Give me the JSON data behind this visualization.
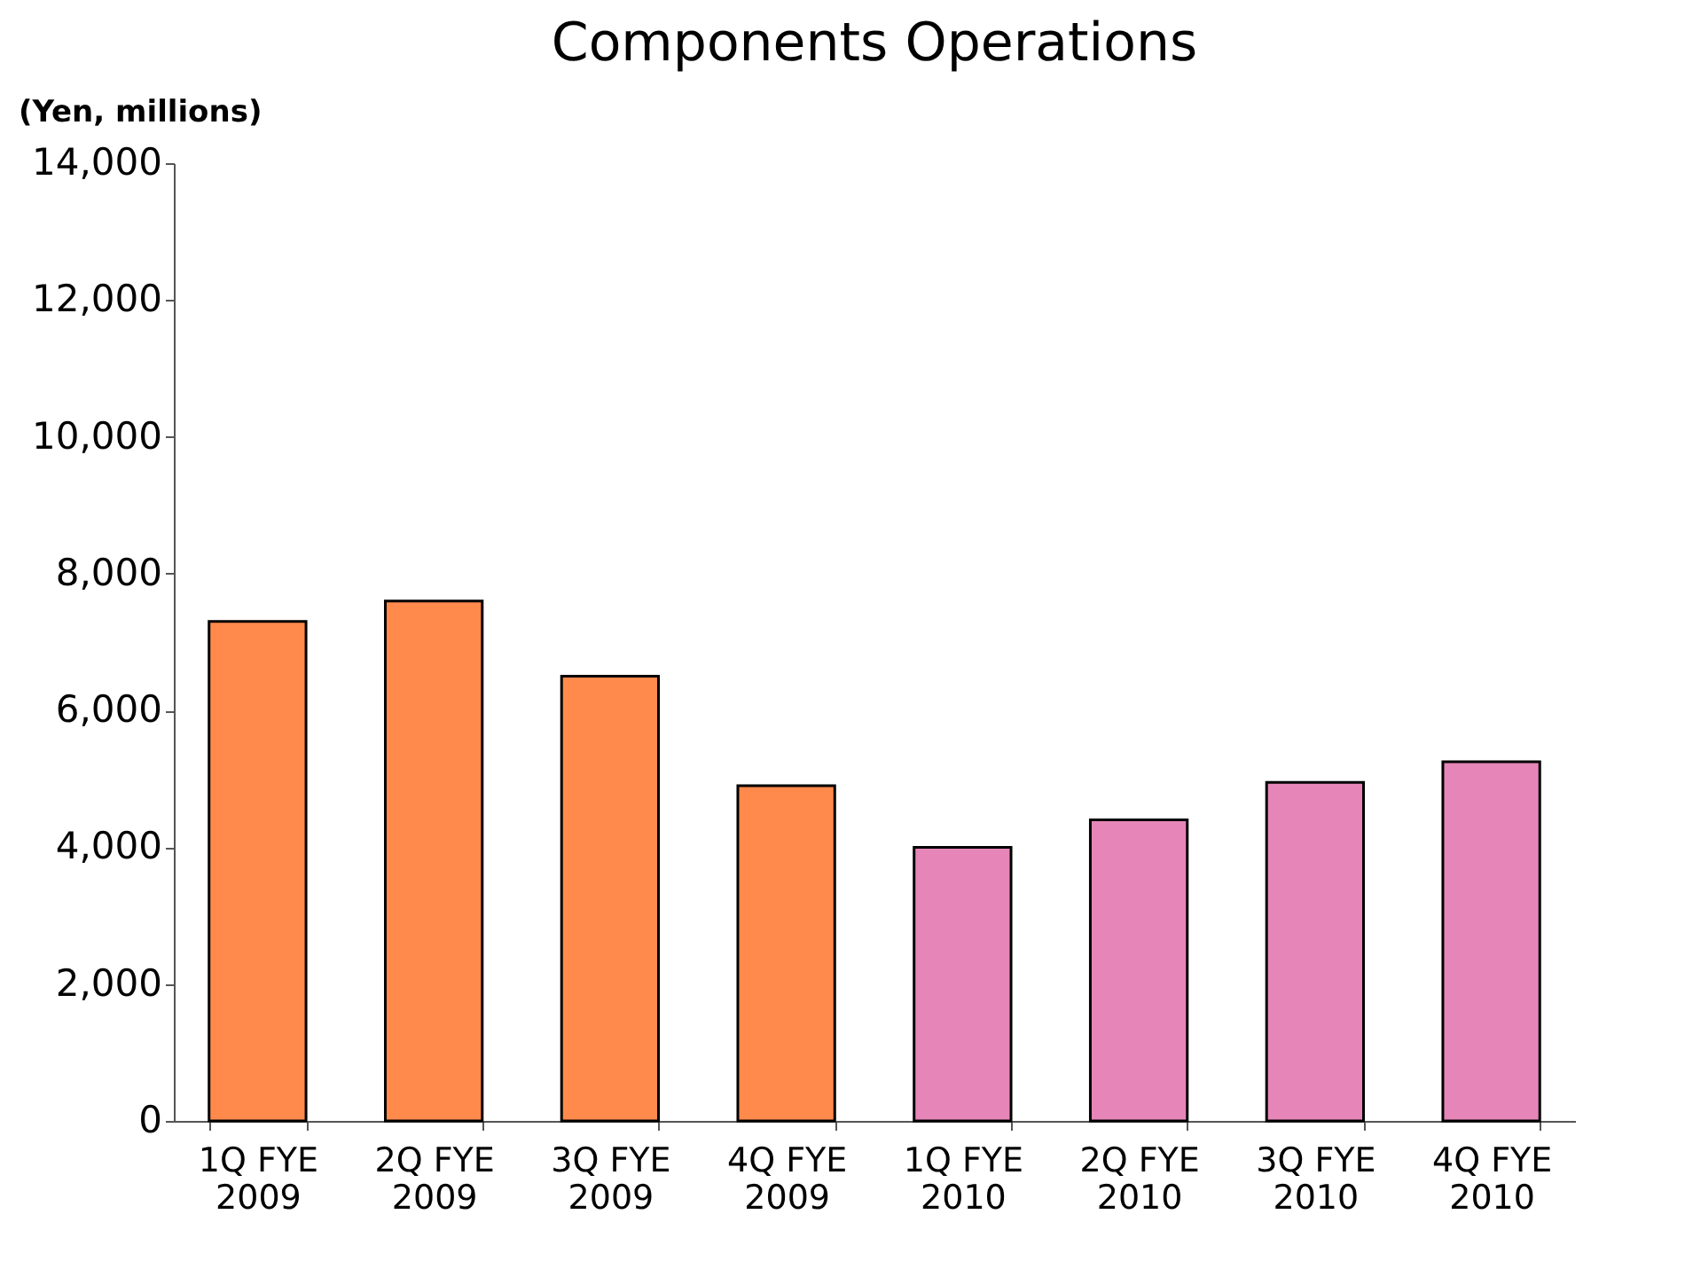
{
  "chart_data": {
    "type": "bar",
    "title": "Components Operations",
    "ylabel": "(Yen, millions)",
    "categories": [
      "1Q FYE 2009",
      "2Q FYE 2009",
      "3Q FYE 2009",
      "4Q FYE 2009",
      "1Q FYE 2010",
      "2Q FYE 2010",
      "3Q FYE 2010",
      "4Q FYE 2010"
    ],
    "values": [
      7300,
      7600,
      6500,
      4900,
      4000,
      4400,
      4950,
      5250
    ],
    "colors": [
      "#ff8a4c",
      "#ff8a4c",
      "#ff8a4c",
      "#ff8a4c",
      "#e686b8",
      "#e686b8",
      "#e686b8",
      "#e686b8"
    ],
    "ylim": [
      0,
      14000
    ],
    "yticks": [
      0,
      {
        "value": 2000,
        "label": "2,000"
      },
      {
        "value": 4000,
        "label": "4,000"
      },
      {
        "value": 6000,
        "label": "6,000"
      },
      {
        "value": 8000,
        "label": "8,000"
      },
      {
        "value": 10000,
        "label": "10,000"
      },
      {
        "value": 12000,
        "label": "12,000"
      },
      {
        "value": 14000,
        "label": "14,000"
      }
    ],
    "grid": false
  }
}
